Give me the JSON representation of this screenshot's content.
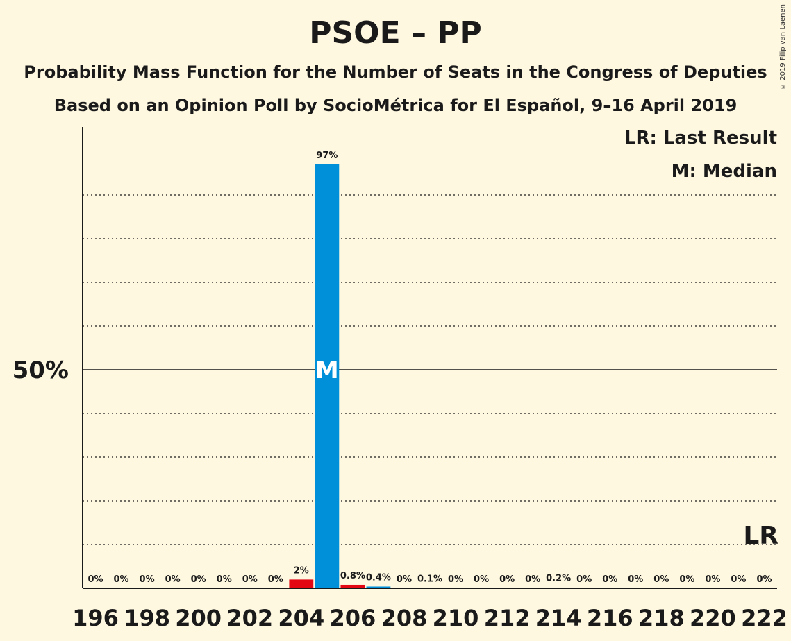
{
  "header": {
    "title": "PSOE – PP",
    "subtitle1": "Probability Mass Function for the Number of Seats in the Congress of Deputies",
    "subtitle2": "Based on an Opinion Poll by SocioMétrica for El Español, 9–16 April 2019",
    "copyright": "© 2019 Filip van Laenen"
  },
  "legend": {
    "last_result": "LR: Last Result",
    "median": "M: Median"
  },
  "chart_data": {
    "type": "bar",
    "x": [
      196,
      197,
      198,
      199,
      200,
      201,
      202,
      203,
      204,
      205,
      206,
      207,
      208,
      209,
      210,
      211,
      212,
      213,
      214,
      215,
      216,
      217,
      218,
      219,
      220,
      221,
      222
    ],
    "values": [
      0,
      0,
      0,
      0,
      0,
      0,
      0,
      0,
      2,
      97,
      0.8,
      0.4,
      0,
      0.1,
      0,
      0,
      0,
      0,
      0.2,
      0,
      0,
      0,
      0,
      0,
      0,
      0,
      0
    ],
    "value_labels": [
      "0%",
      "0%",
      "0%",
      "0%",
      "0%",
      "0%",
      "0%",
      "0%",
      "2%",
      "97%",
      "0.8%",
      "0.4%",
      "0%",
      "0.1%",
      "0%",
      "0%",
      "0%",
      "0%",
      "0.2%",
      "0%",
      "0%",
      "0%",
      "0%",
      "0%",
      "0%",
      "0%",
      "0%"
    ],
    "bar_colors": {
      "204": "#E30613",
      "205": "#0090DA",
      "206": "#E30613",
      "207": "#0090DA"
    },
    "x_tick_labels": [
      "196",
      "198",
      "200",
      "202",
      "204",
      "206",
      "208",
      "210",
      "212",
      "214",
      "216",
      "218",
      "220",
      "222"
    ],
    "y_tick_label": "50%",
    "ylim": [
      0,
      100
    ],
    "grid": "dotted every 10%",
    "median_seat": 205,
    "median_marker": "M",
    "last_result_seat": 222,
    "last_result_marker": "LR"
  }
}
